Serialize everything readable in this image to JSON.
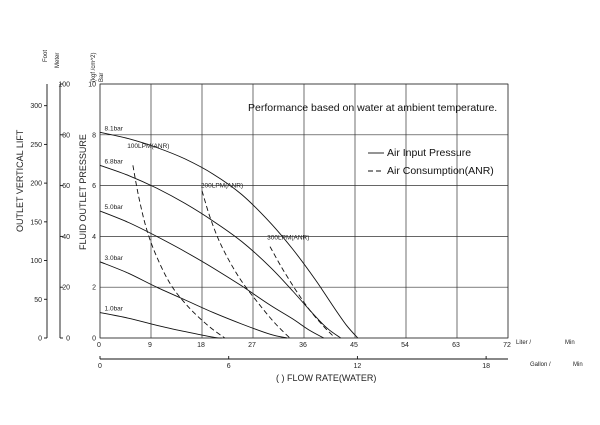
{
  "chart_data": {
    "type": "line",
    "title": "",
    "annotation": "Performance based on water at ambient temperature.",
    "x_liter": {
      "ticks": [
        0,
        9,
        18,
        27,
        36,
        45,
        54,
        63,
        72
      ],
      "unit_label": "Liter /",
      "unit_label2": "Min",
      "range": [
        0,
        72
      ]
    },
    "x_gallon": {
      "ticks": [
        0,
        6,
        12,
        18
      ],
      "unit_label": "Gallon /",
      "unit_label2": "Min",
      "range": [
        0,
        19.02
      ]
    },
    "xlabel": "(    ) FLOW RATE(WATER)",
    "y_pressure": {
      "ticks": [
        0,
        2,
        4,
        6,
        8,
        10
      ],
      "range": [
        0,
        10
      ],
      "unit_label": "(kgf /cm^2)",
      "unit_label2": "Bar",
      "ylabel": "FLUID OUTLET PRESSURE"
    },
    "y_lift_foot": {
      "ticks": [
        0,
        50,
        100,
        150,
        200,
        250,
        300
      ],
      "unit_label": "Foot",
      "range": [
        0,
        328
      ]
    },
    "y_lift_meter": {
      "ticks": [
        0,
        20,
        40,
        60,
        80,
        100
      ],
      "unit_label": "Meter",
      "range": [
        0,
        100
      ],
      "ylabel": "OUTLET VERTICAL LIFT"
    },
    "legend": {
      "placement": "right",
      "solid": "Air Input Pressure",
      "dashed": "Air Consumption(ANR)"
    },
    "series": [
      {
        "name": "8.1bar",
        "style": "solid",
        "x": [
          0,
          5,
          10,
          15,
          20,
          25,
          30,
          34,
          38,
          41,
          43.5,
          45.5
        ],
        "y": [
          8.1,
          7.85,
          7.5,
          7.05,
          6.45,
          5.65,
          4.55,
          3.5,
          2.3,
          1.3,
          0.5,
          0
        ]
      },
      {
        "name": "6.8bar",
        "style": "solid",
        "x": [
          0,
          5,
          10,
          15,
          20,
          25,
          30,
          34,
          37,
          40,
          42.5
        ],
        "y": [
          6.8,
          6.4,
          5.9,
          5.3,
          4.6,
          3.8,
          2.8,
          1.85,
          1.1,
          0.4,
          0
        ]
      },
      {
        "name": "5.0bar",
        "style": "solid",
        "x": [
          0,
          5,
          10,
          15,
          20,
          25,
          30,
          34,
          37,
          39.5
        ],
        "y": [
          5.0,
          4.55,
          4.0,
          3.4,
          2.75,
          2.05,
          1.3,
          0.75,
          0.3,
          0
        ]
      },
      {
        "name": "3.0bar",
        "style": "solid",
        "x": [
          0,
          5,
          10,
          15,
          20,
          25,
          30,
          33
        ],
        "y": [
          3.0,
          2.55,
          2.0,
          1.5,
          1.0,
          0.55,
          0.15,
          0
        ]
      },
      {
        "name": "1.0bar",
        "style": "solid",
        "x": [
          0,
          5,
          10,
          15,
          20,
          21.5
        ],
        "y": [
          1.0,
          0.78,
          0.5,
          0.25,
          0.03,
          0
        ]
      },
      {
        "name": "100LPM(ANR)",
        "style": "dashed",
        "x": [
          5.8,
          6.8,
          8.2,
          10.0,
          12.5,
          15.5,
          19.0,
          22.0
        ],
        "y": [
          6.8,
          5.6,
          4.3,
          3.2,
          2.1,
          1.25,
          0.5,
          0
        ]
      },
      {
        "name": "200LPM(ANR)",
        "style": "dashed",
        "x": [
          18.0,
          19.5,
          21.5,
          24.5,
          28.0,
          31.0,
          33.5
        ],
        "y": [
          5.8,
          4.7,
          3.6,
          2.4,
          1.35,
          0.55,
          0
        ]
      },
      {
        "name": "300LPM(ANR)",
        "style": "dashed",
        "x": [
          30.0,
          32.0,
          34.5,
          37.0,
          39.5,
          41.5
        ],
        "y": [
          3.6,
          2.8,
          1.9,
          1.1,
          0.45,
          0
        ]
      }
    ],
    "curve_labels": [
      {
        "text": "8.1bar",
        "x": 0.8,
        "y": 8.1
      },
      {
        "text": "6.8bar",
        "x": 0.8,
        "y": 6.8
      },
      {
        "text": "5.0bar",
        "x": 0.8,
        "y": 5.0
      },
      {
        "text": "3.0bar",
        "x": 0.8,
        "y": 3.0
      },
      {
        "text": "1.0bar",
        "x": 0.8,
        "y": 1.0
      },
      {
        "text": "100LPM(ANR)",
        "x": 4.8,
        "y": 7.4
      },
      {
        "text": "200LPM(ANR)",
        "x": 17.8,
        "y": 5.85
      },
      {
        "text": "300LPM(ANR)",
        "x": 29.5,
        "y": 3.8
      }
    ]
  }
}
